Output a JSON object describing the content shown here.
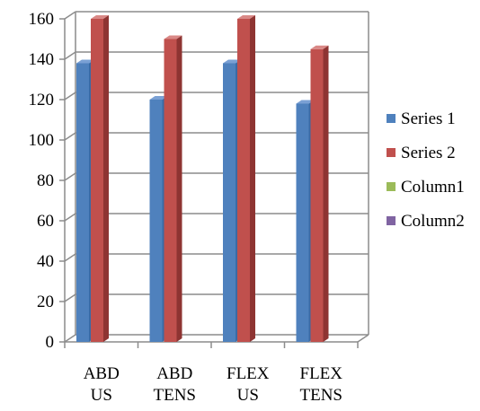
{
  "chart_data": {
    "type": "bar",
    "categories": [
      [
        "ABD",
        "US"
      ],
      [
        "ABD",
        "TENS"
      ],
      [
        "FLEX",
        "US"
      ],
      [
        "FLEX",
        "TENS"
      ]
    ],
    "series": [
      {
        "name": "Series 1",
        "values": [
          138,
          120,
          138,
          118
        ],
        "color": "#4f81bd",
        "top_color": "#7aa0d4",
        "side_color": "#3a6aa5"
      },
      {
        "name": "Series 2",
        "values": [
          160,
          150,
          160,
          145
        ],
        "color": "#c0504d",
        "top_color": "#d98886",
        "side_color": "#8e3432"
      },
      {
        "name": "Column1",
        "values": [
          0,
          0,
          0,
          0
        ],
        "color": "#9bbb59"
      },
      {
        "name": "Column2",
        "values": [
          0,
          0,
          0,
          0
        ],
        "color": "#8064a2"
      }
    ],
    "ylim": [
      0,
      160
    ],
    "yticks": [
      0,
      20,
      40,
      60,
      80,
      100,
      120,
      140,
      160
    ],
    "grid": true,
    "legend_position": "right",
    "title": "",
    "xlabel": "",
    "ylabel": ""
  }
}
